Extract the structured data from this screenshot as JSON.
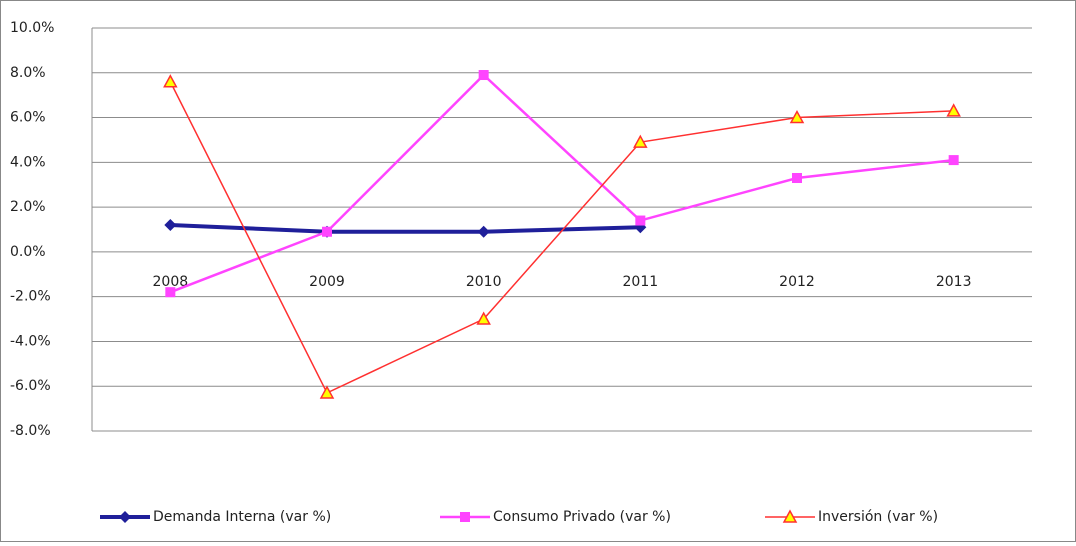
{
  "chart_data": {
    "type": "line",
    "categories": [
      "2008",
      "2009",
      "2010",
      "2011",
      "2012",
      "2013"
    ],
    "series": [
      {
        "name": "Demanda Interna (var %)",
        "color": "#1f1f9a",
        "marker": "diamond",
        "values": [
          1.2,
          0.9,
          0.9,
          1.1,
          null,
          null
        ]
      },
      {
        "name": "Consumo Privado (var %)",
        "color": "#ff44ff",
        "marker": "square",
        "values": [
          -1.8,
          0.9,
          7.9,
          1.4,
          3.3,
          4.1
        ]
      },
      {
        "name": "Inversión (var %)",
        "color": "#ff3030",
        "marker": "triangle",
        "values": [
          7.6,
          -6.3,
          -3.0,
          4.9,
          6.0,
          6.3
        ]
      }
    ],
    "ylim": [
      -8,
      10
    ],
    "yticks": [
      {
        "value": 10,
        "label": "10.0%"
      },
      {
        "value": 8,
        "label": "8.0%"
      },
      {
        "value": 6,
        "label": "6.0%"
      },
      {
        "value": 4,
        "label": "4.0%"
      },
      {
        "value": 2,
        "label": "2.0%"
      },
      {
        "value": 0,
        "label": "0.0%"
      },
      {
        "value": -2,
        "label": "-2.0%"
      },
      {
        "value": -4,
        "label": "-4.0%"
      },
      {
        "value": -6,
        "label": "-6.0%"
      },
      {
        "value": -8,
        "label": "-8.0%"
      }
    ],
    "grid": true,
    "legend": "bottom"
  }
}
